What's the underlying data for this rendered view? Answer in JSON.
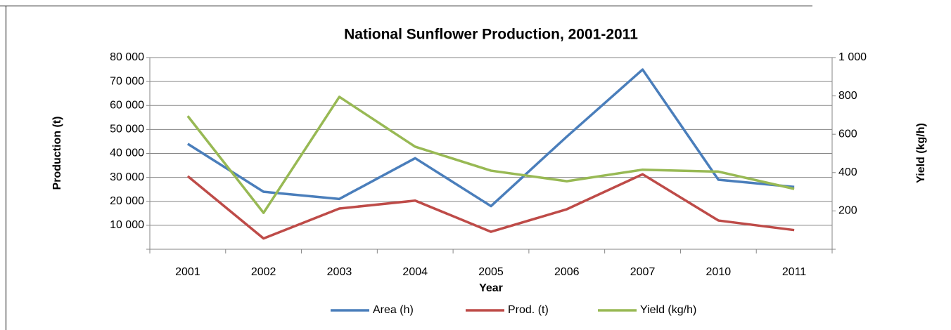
{
  "chart_data": {
    "type": "line",
    "title": "National Sunflower Production, 2001-2011",
    "x_label": "Year",
    "y_label": "Production (t)",
    "y2_label": "Yield (kg/h)",
    "categories": [
      "2001",
      "2002",
      "2003",
      "2004",
      "2005",
      "2006",
      "2007",
      "2010",
      "2011"
    ],
    "series": [
      {
        "name": "Area (h)",
        "color": "#4a7ebb",
        "values": [
          44000,
          24000,
          21000,
          38000,
          18000,
          47000,
          75000,
          29000,
          26000
        ]
      },
      {
        "name": "Prod. (t)",
        "color": "#be4b48",
        "values": [
          30500,
          4500,
          17000,
          20300,
          7300,
          16700,
          31300,
          12000,
          8000
        ]
      },
      {
        "name": "Yield (kg/h)",
        "color": "#98b954",
        "axis": "y2",
        "values": [
          695,
          190,
          795,
          535,
          410,
          355,
          415,
          405,
          315
        ]
      }
    ],
    "ylim": [
      0,
      80000
    ],
    "yticks": [
      {
        "value": 10000,
        "label": "10 000"
      },
      {
        "value": 20000,
        "label": "20 000"
      },
      {
        "value": 30000,
        "label": "30 000"
      },
      {
        "value": 40000,
        "label": "40 000"
      },
      {
        "value": 50000,
        "label": "50 000"
      },
      {
        "value": 60000,
        "label": "60 000"
      },
      {
        "value": 70000,
        "label": "70 000"
      },
      {
        "value": 80000,
        "label": "80 000"
      }
    ],
    "y2lim": [
      0,
      1000
    ],
    "y2ticks": [
      200,
      400,
      600,
      800,
      {
        "value": 1000,
        "label": "1 000"
      }
    ],
    "grid": true,
    "legend": "bottom"
  }
}
